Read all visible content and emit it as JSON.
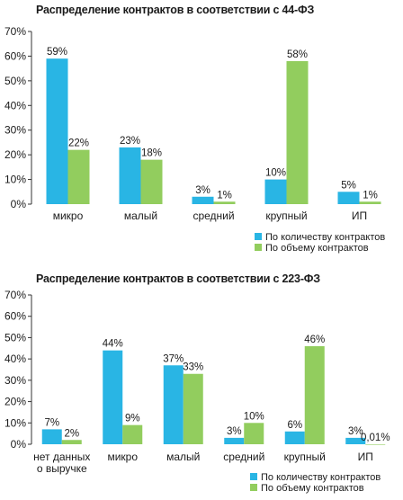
{
  "colors": {
    "count": "#29b5e4",
    "volume": "#92cd5e",
    "axis": "#333333"
  },
  "chart_data": [
    {
      "type": "bar",
      "title": "Распределение контрактов в соответствии с 44-ФЗ",
      "categories": [
        "микро",
        "малый",
        "средний",
        "крупный",
        "ИП"
      ],
      "series": [
        {
          "name": "По количеству контрактов",
          "values": [
            59,
            23,
            3,
            10,
            5
          ],
          "labels": [
            "59%",
            "23%",
            "3%",
            "10%",
            "5%"
          ]
        },
        {
          "name": "По объему контрактов",
          "values": [
            22,
            18,
            1,
            58,
            1
          ],
          "labels": [
            "22%",
            "18%",
            "1%",
            "58%",
            "1%"
          ]
        }
      ],
      "yticks": [
        "0%",
        "10%",
        "20%",
        "30%",
        "40%",
        "50%",
        "60%",
        "70%"
      ],
      "ylim": [
        0,
        70
      ],
      "legend": "bottom-right",
      "grid": false
    },
    {
      "type": "bar",
      "title": "Распределение контрактов в соответствии с 223-ФЗ",
      "categories": [
        "нет данных о выручке",
        "микро",
        "малый",
        "средний",
        "крупный",
        "ИП"
      ],
      "category_lines": [
        [
          "нет данных",
          "о выручке"
        ],
        [
          "микро"
        ],
        [
          "малый"
        ],
        [
          "средний"
        ],
        [
          "крупный"
        ],
        [
          "ИП"
        ]
      ],
      "series": [
        {
          "name": "По количеству контрактов",
          "values": [
            7,
            44,
            37,
            3,
            6,
            3
          ],
          "labels": [
            "7%",
            "44%",
            "37%",
            "3%",
            "6%",
            "3%"
          ]
        },
        {
          "name": "По объему контрактов",
          "values": [
            2,
            9,
            33,
            10,
            46,
            0.01
          ],
          "labels": [
            "2%",
            "9%",
            "33%",
            "10%",
            "46%",
            "0,01%"
          ]
        }
      ],
      "yticks": [
        "0%",
        "10%",
        "20%",
        "30%",
        "40%",
        "50%",
        "60%",
        "70%"
      ],
      "ylim": [
        0,
        70
      ],
      "legend": "bottom-right",
      "grid": false
    }
  ]
}
